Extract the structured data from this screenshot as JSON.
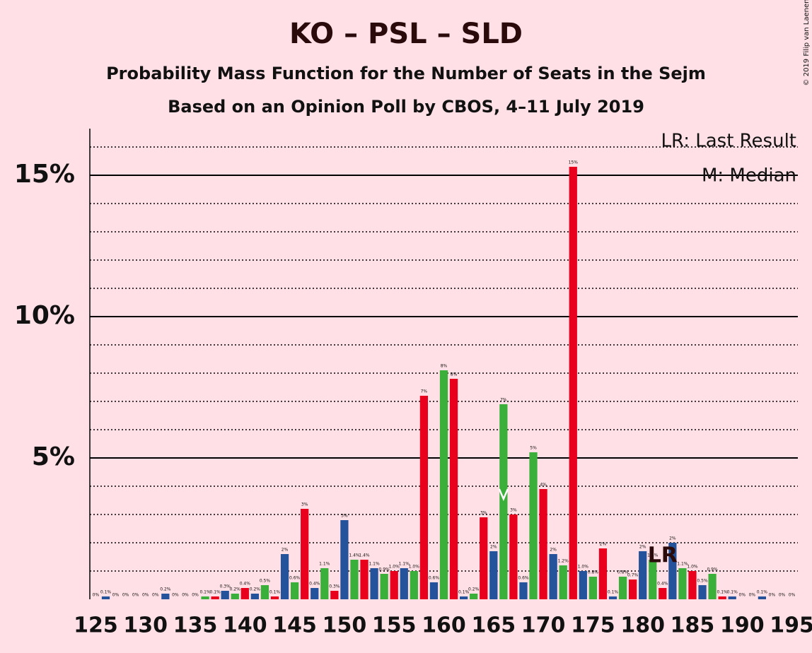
{
  "chart_data": {
    "type": "bar",
    "title": "KO – PSL – SLD",
    "subtitle": "Probability Mass Function for the Number of Seats in the Sejm",
    "subtitle2": "Based on an Opinion Poll by CBOS, 4–11 July 2019",
    "copyright": "© 2019 Filip van Laenen",
    "legend_lr": "LR: Last Result",
    "legend_median": "M: Median",
    "last_result_label": "LR",
    "last_result": 182,
    "median": 166,
    "x": [
      125,
      126,
      127,
      128,
      129,
      130,
      131,
      132,
      133,
      134,
      135,
      136,
      137,
      138,
      139,
      140,
      141,
      142,
      143,
      144,
      145,
      146,
      147,
      148,
      149,
      150,
      151,
      152,
      153,
      154,
      155,
      156,
      157,
      158,
      159,
      160,
      161,
      162,
      163,
      164,
      165,
      166,
      167,
      168,
      169,
      170,
      171,
      172,
      173,
      174,
      175,
      176,
      177,
      178,
      179,
      180,
      181,
      182,
      183,
      184,
      185,
      186,
      187,
      188,
      189,
      190,
      191,
      192,
      193,
      194,
      195
    ],
    "values": [
      0,
      0.1,
      0,
      0,
      0,
      0,
      0,
      0.2,
      0,
      0,
      0,
      0.1,
      0.1,
      0.3,
      0.2,
      0.4,
      0.2,
      0.5,
      0.1,
      1.6,
      0.6,
      3.2,
      0.4,
      1.1,
      0.3,
      2.8,
      1.4,
      1.4,
      1.1,
      0.9,
      1.0,
      1.1,
      1.0,
      7.2,
      0.6,
      8.1,
      7.8,
      0.1,
      0.2,
      2.9,
      1.7,
      6.9,
      3.0,
      0.6,
      5.2,
      3.9,
      1.6,
      1.2,
      15.3,
      1.0,
      0.8,
      1.8,
      0.1,
      0.8,
      0.7,
      1.7,
      1.4,
      0.4,
      2.0,
      1.1,
      1.0,
      0.5,
      0.9,
      0.1,
      0.1,
      0,
      0,
      0.1,
      0,
      0,
      0
    ],
    "value_labels": [
      "0%",
      "0.1%",
      "0%",
      "0%",
      "0%",
      "0%",
      "0%",
      "0.2%",
      "0%",
      "0%",
      "0%",
      "0.1%",
      "0.1%",
      "0.3%",
      "0.2%",
      "0.4%",
      "0.2%",
      "0.5%",
      "0.1%",
      "2%",
      "0.6%",
      "3%",
      "0.4%",
      "1.1%",
      "0.3%",
      "3%",
      "1.4%",
      "1.4%",
      "1.1%",
      "0.9%",
      "1.0%",
      "1.1%",
      "1.0%",
      "7%",
      "0.6%",
      "8%",
      "8%",
      "0.1%",
      "0.2%",
      "3%",
      "2%",
      "7%",
      "3%",
      "0.6%",
      "5%",
      "4%",
      "2%",
      "1.2%",
      "15%",
      "1.0%",
      "0.8%",
      "2%",
      "0.1%",
      "0.8%",
      "0.7%",
      "2%",
      "1.4%",
      "0.4%",
      "2%",
      "1.1%",
      "1.0%",
      "0.5%",
      "0.9%",
      "0.1%",
      "0.1%",
      "0%",
      "0%",
      "0.1%",
      "0%",
      "0%",
      "0%"
    ],
    "colors": [
      "#e8001c",
      "#24539c",
      "#3ab03a",
      "#e8001c",
      "#24539c",
      "#3ab03a",
      "#e8001c",
      "#24539c",
      "#3ab03a",
      "#e8001c",
      "#24539c",
      "#3ab03a",
      "#e8001c",
      "#24539c",
      "#3ab03a",
      "#e8001c",
      "#24539c",
      "#3ab03a",
      "#e8001c",
      "#24539c",
      "#3ab03a",
      "#e8001c",
      "#24539c",
      "#3ab03a",
      "#e8001c",
      "#24539c",
      "#3ab03a",
      "#e8001c",
      "#24539c",
      "#3ab03a",
      "#e8001c",
      "#24539c",
      "#3ab03a",
      "#e8001c",
      "#24539c",
      "#3ab03a",
      "#e8001c",
      "#24539c",
      "#3ab03a",
      "#e8001c",
      "#24539c",
      "#3ab03a",
      "#e8001c",
      "#24539c",
      "#3ab03a",
      "#e8001c",
      "#24539c",
      "#3ab03a",
      "#e8001c",
      "#24539c",
      "#3ab03a",
      "#e8001c",
      "#24539c",
      "#3ab03a",
      "#e8001c",
      "#24539c",
      "#3ab03a",
      "#e8001c",
      "#24539c",
      "#3ab03a",
      "#e8001c",
      "#24539c",
      "#3ab03a",
      "#e8001c",
      "#24539c",
      "#3ab03a",
      "#e8001c",
      "#24539c",
      "#3ab03a",
      "#e8001c",
      "#24539c"
    ],
    "xlim": [
      124.4,
      195.6
    ],
    "xticks": [
      125,
      130,
      135,
      140,
      145,
      150,
      155,
      160,
      165,
      170,
      175,
      180,
      185,
      190,
      195
    ],
    "ylim": [
      0,
      16.65
    ],
    "yticks": [
      {
        "value": 5,
        "label": "5%"
      },
      {
        "value": 10,
        "label": "10%"
      },
      {
        "value": 15,
        "label": "15%"
      }
    ],
    "minor_yticks": [
      1,
      2,
      3,
      4,
      6,
      7,
      8,
      9,
      11,
      12,
      13,
      14,
      16
    ],
    "grid": true
  }
}
